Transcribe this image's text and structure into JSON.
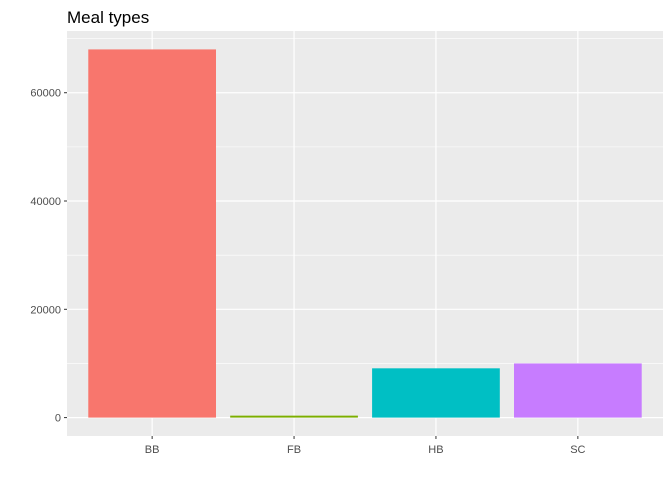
{
  "chart_data": {
    "type": "bar",
    "title": "Meal types",
    "xlabel": "",
    "ylabel": "",
    "categories": [
      "BB",
      "FB",
      "HB",
      "SC"
    ],
    "values": [
      68000,
      360,
      9100,
      10000
    ],
    "colors": [
      "#F8766D",
      "#7CAE00",
      "#00BFC4",
      "#C77CFF"
    ],
    "ylim": [
      -3400,
      71400
    ],
    "y_ticks": [
      0,
      20000,
      40000,
      60000
    ],
    "y_tick_labels": [
      "0",
      "20000",
      "40000",
      "60000"
    ],
    "grid": true,
    "legend": "none",
    "panel_background": "#EBEBEB",
    "grid_color": "#FFFFFF"
  }
}
